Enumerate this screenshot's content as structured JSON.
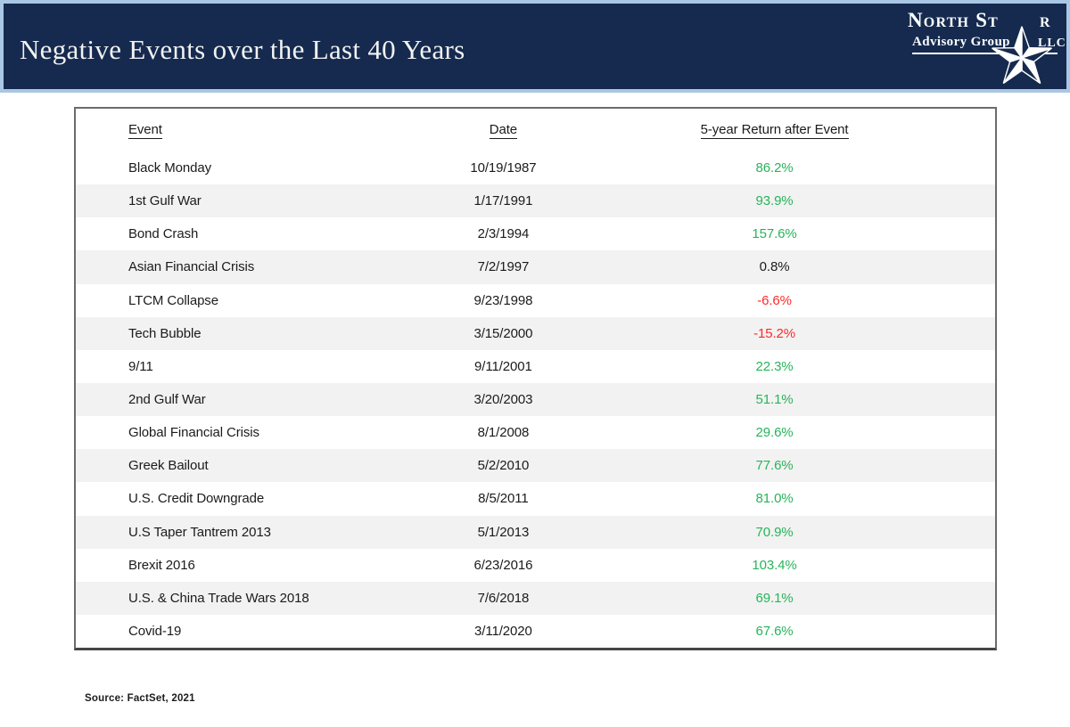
{
  "logo": {
    "name_left": "North St",
    "name_right": "r",
    "subtitle": "Advisory Group",
    "suffix": "LLC",
    "star_icon": "five-point-star"
  },
  "chart_data": {
    "type": "table",
    "title": "Negative Events over the Last 40 Years",
    "columns": [
      "Event",
      "Date",
      "5-year Return after Event"
    ],
    "rows": [
      {
        "event": "Black Monday",
        "date": "10/19/1987",
        "return": "86.2%",
        "return_color": "green"
      },
      {
        "event": "1st Gulf War",
        "date": "1/17/1991",
        "return": "93.9%",
        "return_color": "green"
      },
      {
        "event": "Bond Crash",
        "date": "2/3/1994",
        "return": "157.6%",
        "return_color": "green"
      },
      {
        "event": "Asian Financial Crisis",
        "date": "7/2/1997",
        "return": "0.8%",
        "return_color": "black"
      },
      {
        "event": "LTCM Collapse",
        "date": "9/23/1998",
        "return": "-6.6%",
        "return_color": "red"
      },
      {
        "event": "Tech Bubble",
        "date": "3/15/2000",
        "return": "-15.2%",
        "return_color": "red"
      },
      {
        "event": "9/11",
        "date": "9/11/2001",
        "return": "22.3%",
        "return_color": "green"
      },
      {
        "event": "2nd Gulf War",
        "date": "3/20/2003",
        "return": "51.1%",
        "return_color": "green"
      },
      {
        "event": "Global Financial Crisis",
        "date": "8/1/2008",
        "return": "29.6%",
        "return_color": "green"
      },
      {
        "event": "Greek Bailout",
        "date": "5/2/2010",
        "return": "77.6%",
        "return_color": "green"
      },
      {
        "event": "U.S. Credit Downgrade",
        "date": "8/5/2011",
        "return": "81.0%",
        "return_color": "green"
      },
      {
        "event": "U.S Taper Tantrem 2013",
        "date": "5/1/2013",
        "return": "70.9%",
        "return_color": "green"
      },
      {
        "event": "Brexit 2016",
        "date": "6/23/2016",
        "return": "103.4%",
        "return_color": "green"
      },
      {
        "event": "U.S. & China Trade Wars 2018",
        "date": "7/6/2018",
        "return": "69.1%",
        "return_color": "green"
      },
      {
        "event": "Covid-19",
        "date": "3/11/2020",
        "return": "67.6%",
        "return_color": "green"
      }
    ],
    "source": "Source: FactSet, 2021"
  },
  "colors": {
    "navy": "#152a4e",
    "light_blue": "#a9c7e5",
    "green": "#28b45a",
    "red": "#ff2929",
    "text": "#1b1b1b",
    "stripe": "#f2f2f2"
  }
}
